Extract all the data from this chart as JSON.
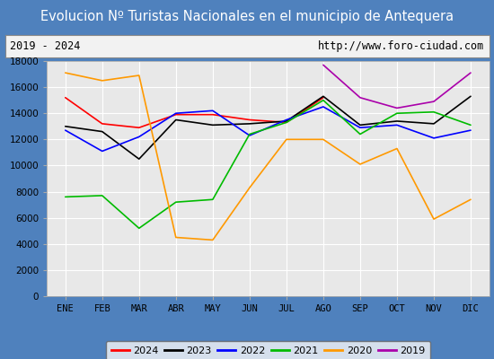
{
  "title": "Evolucion Nº Turistas Nacionales en el municipio de Antequera",
  "subtitle_left": "2019 - 2024",
  "subtitle_right": "http://www.foro-ciudad.com",
  "x_labels": [
    "ENE",
    "FEB",
    "MAR",
    "ABR",
    "MAY",
    "JUN",
    "JUL",
    "AGO",
    "SEP",
    "OCT",
    "NOV",
    "DIC"
  ],
  "ylim": [
    0,
    18000
  ],
  "yticks": [
    0,
    2000,
    4000,
    6000,
    8000,
    10000,
    12000,
    14000,
    16000,
    18000
  ],
  "series": {
    "2024": {
      "color": "#ff0000",
      "data": [
        15200,
        13200,
        12900,
        13900,
        13900,
        13500,
        13300,
        15200,
        null,
        null,
        null,
        null
      ]
    },
    "2023": {
      "color": "#000000",
      "data": [
        13000,
        12600,
        10500,
        13500,
        13100,
        13200,
        13400,
        15300,
        13100,
        13400,
        13200,
        15300
      ]
    },
    "2022": {
      "color": "#0000ff",
      "data": [
        12700,
        11100,
        12200,
        14000,
        14200,
        12300,
        13500,
        14500,
        12900,
        13100,
        12100,
        12700
      ]
    },
    "2021": {
      "color": "#00bb00",
      "data": [
        7600,
        7700,
        5200,
        7200,
        7400,
        12400,
        13300,
        15000,
        12400,
        14000,
        14100,
        13100
      ]
    },
    "2020": {
      "color": "#ff9900",
      "data": [
        17100,
        16500,
        16900,
        4500,
        4300,
        8300,
        12000,
        12000,
        10100,
        11300,
        5900,
        7400
      ]
    },
    "2019": {
      "color": "#aa00aa",
      "data": [
        null,
        null,
        null,
        null,
        null,
        null,
        null,
        17700,
        15200,
        14400,
        14900,
        17100
      ]
    }
  },
  "title_bg_color": "#4f81bd",
  "title_text_color": "#ffffff",
  "subtitle_bg_color": "#f2f2f2",
  "plot_bg_color": "#e8e8e8",
  "grid_color": "#ffffff",
  "legend_order": [
    "2024",
    "2023",
    "2022",
    "2021",
    "2020",
    "2019"
  ],
  "fig_bg_color": "#4f81bd"
}
